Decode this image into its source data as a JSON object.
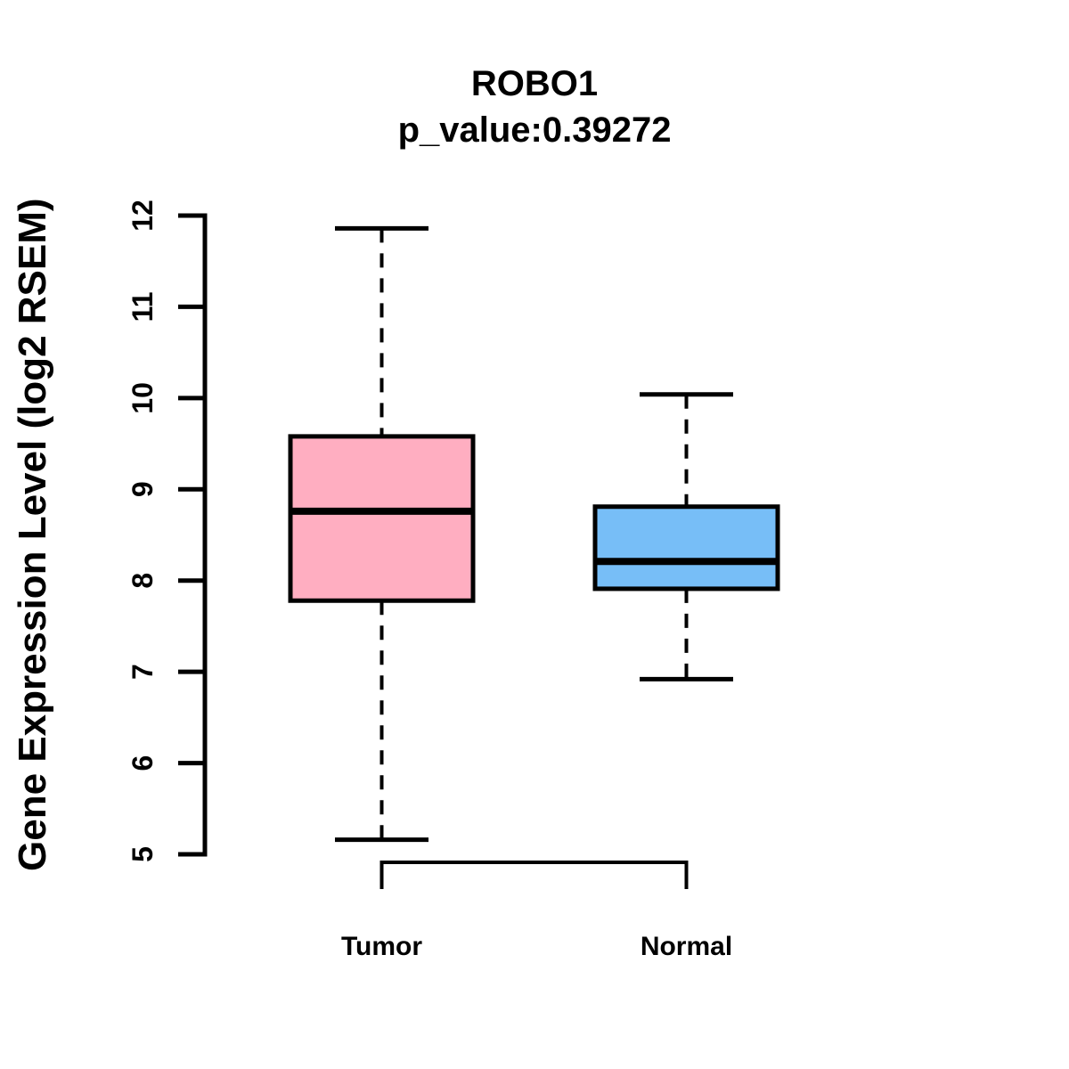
{
  "header": {
    "title": "ROBO1",
    "subtitle": "p_value:0.39272"
  },
  "chart_data": {
    "type": "boxplot",
    "title": "ROBO1",
    "subtitle": "p_value:0.39272",
    "ylabel": "Gene Expression Level (log2 RSEM)",
    "xlabel": "",
    "ylim": [
      5,
      12
    ],
    "yticks": [
      5,
      6,
      7,
      8,
      9,
      10,
      11,
      12
    ],
    "categories": [
      "Tumor",
      "Normal"
    ],
    "series": [
      {
        "name": "Tumor",
        "fill_color": "#FFAEC1",
        "whisker_low": 5.16,
        "q1": 7.78,
        "median": 8.76,
        "q3": 9.58,
        "whisker_high": 11.86
      },
      {
        "name": "Normal",
        "fill_color": "#77BEF7",
        "whisker_low": 6.92,
        "q1": 7.91,
        "median": 8.21,
        "q3": 8.81,
        "whisker_high": 10.04
      }
    ],
    "line_color": "#000000",
    "background": "#FFFFFF",
    "grid": false,
    "legend": "none",
    "comparison_bracket": true
  }
}
